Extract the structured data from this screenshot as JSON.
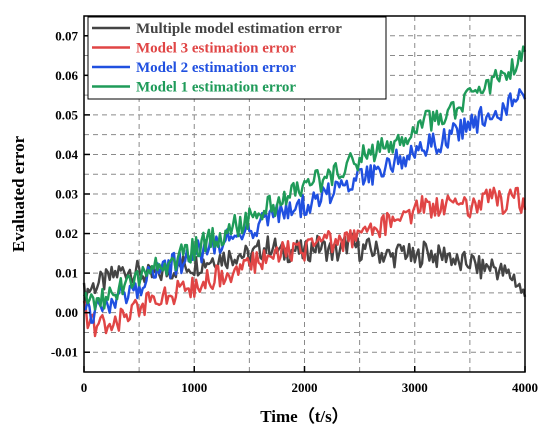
{
  "chart_data": {
    "type": "line",
    "title": "",
    "xlabel": "Time（t/s）",
    "ylabel": "Evaluated error",
    "xlim": [
      0,
      4000
    ],
    "ylim": [
      -0.015,
      0.075
    ],
    "xticks": [
      0,
      1000,
      2000,
      3000,
      4000
    ],
    "xtick_labels": [
      "0",
      "1000",
      "2000",
      "3000",
      "4000"
    ],
    "yticks": [
      -0.01,
      0.0,
      0.01,
      0.02,
      0.03,
      0.04,
      0.05,
      0.06,
      0.07
    ],
    "ytick_labels": [
      "-0.01",
      "0.00",
      "0.01",
      "0.02",
      "0.03",
      "0.04",
      "0.05",
      "0.06",
      "0.07"
    ],
    "grid": true,
    "legend_position": "top-left",
    "x": [
      0,
      100,
      200,
      300,
      400,
      500,
      600,
      700,
      800,
      900,
      1000,
      1100,
      1200,
      1300,
      1400,
      1500,
      1600,
      1700,
      1800,
      1900,
      2000,
      2100,
      2200,
      2300,
      2400,
      2500,
      2600,
      2700,
      2800,
      2900,
      3000,
      3100,
      3200,
      3300,
      3400,
      3500,
      3600,
      3700,
      3800,
      3900,
      4000
    ],
    "series": [
      {
        "name": "Multiple model estimation error",
        "color": "#444444",
        "values": [
          0.005,
          0.007,
          0.008,
          0.01,
          0.011,
          0.01,
          0.009,
          0.01,
          0.011,
          0.012,
          0.012,
          0.013,
          0.014,
          0.014,
          0.015,
          0.014,
          0.016,
          0.017,
          0.015,
          0.016,
          0.015,
          0.017,
          0.016,
          0.015,
          0.018,
          0.016,
          0.016,
          0.015,
          0.014,
          0.016,
          0.013,
          0.016,
          0.014,
          0.015,
          0.012,
          0.013,
          0.011,
          0.012,
          0.01,
          0.009,
          0.004
        ]
      },
      {
        "name": "Model 3 estimation error",
        "color": "#e04545",
        "values": [
          0.0,
          -0.004,
          -0.003,
          -0.002,
          0.0,
          0.001,
          0.003,
          0.004,
          0.005,
          0.006,
          0.007,
          0.008,
          0.009,
          0.01,
          0.011,
          0.012,
          0.013,
          0.014,
          0.015,
          0.016,
          0.016,
          0.017,
          0.018,
          0.018,
          0.019,
          0.02,
          0.021,
          0.022,
          0.023,
          0.024,
          0.026,
          0.027,
          0.026,
          0.028,
          0.029,
          0.027,
          0.028,
          0.031,
          0.027,
          0.03,
          0.026
        ]
      },
      {
        "name": "Model 2 estimation error",
        "color": "#2050e0",
        "values": [
          0.001,
          0.0,
          0.002,
          0.004,
          0.005,
          0.007,
          0.009,
          0.01,
          0.012,
          0.013,
          0.015,
          0.016,
          0.017,
          0.019,
          0.02,
          0.021,
          0.022,
          0.024,
          0.025,
          0.026,
          0.027,
          0.029,
          0.03,
          0.031,
          0.032,
          0.034,
          0.035,
          0.036,
          0.038,
          0.039,
          0.04,
          0.042,
          0.043,
          0.044,
          0.046,
          0.047,
          0.049,
          0.05,
          0.052,
          0.053,
          0.054
        ]
      },
      {
        "name": "Model 1 estimation error",
        "color": "#1f9b59",
        "values": [
          0.002,
          0.003,
          0.004,
          0.006,
          0.007,
          0.009,
          0.01,
          0.012,
          0.013,
          0.015,
          0.016,
          0.018,
          0.019,
          0.021,
          0.022,
          0.024,
          0.025,
          0.027,
          0.028,
          0.03,
          0.031,
          0.033,
          0.034,
          0.036,
          0.037,
          0.039,
          0.04,
          0.042,
          0.043,
          0.045,
          0.046,
          0.048,
          0.049,
          0.051,
          0.052,
          0.054,
          0.056,
          0.058,
          0.06,
          0.062,
          0.066
        ]
      }
    ]
  }
}
